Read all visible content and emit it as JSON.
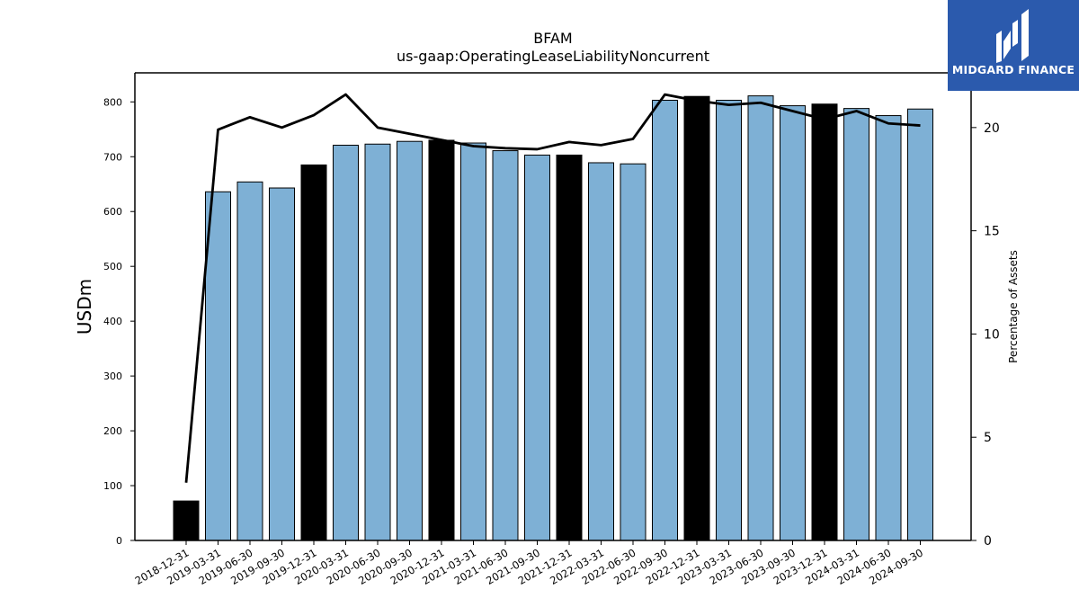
{
  "logo": {
    "text": "MIDGARD FINANCE"
  },
  "chart_data": {
    "type": "bar",
    "title": "BFAM",
    "subtitle": "us-gaap:OperatingLeaseLiabilityNoncurrent",
    "ylabel": "USDm",
    "y2label": "Percentage of Assets",
    "ylim": [
      0,
      853
    ],
    "y2lim": [
      0,
      22.65
    ],
    "yticks": [
      0,
      100,
      200,
      300,
      400,
      500,
      600,
      700,
      800
    ],
    "y2ticks": [
      0,
      5,
      10,
      15,
      20
    ],
    "categories": [
      "2018-12-31",
      "2019-03-31",
      "2019-06-30",
      "2019-09-30",
      "2019-12-31",
      "2020-03-31",
      "2020-06-30",
      "2020-09-30",
      "2020-12-31",
      "2021-03-31",
      "2021-06-30",
      "2021-09-30",
      "2021-12-31",
      "2022-03-31",
      "2022-06-30",
      "2022-09-30",
      "2022-12-31",
      "2023-03-31",
      "2023-06-30",
      "2023-09-30",
      "2023-12-31",
      "2024-03-31",
      "2024-06-30",
      "2024-09-30"
    ],
    "series": [
      {
        "values": [
          72,
          636,
          654,
          643,
          685,
          721,
          723,
          728,
          730,
          725,
          711,
          703,
          703,
          689,
          687,
          803,
          810,
          803,
          811,
          793,
          796,
          788,
          775,
          787
        ]
      },
      {
        "type": "line",
        "axis": "right",
        "values": [
          2.8,
          19.9,
          20.5,
          20.0,
          20.6,
          21.6,
          20.0,
          19.7,
          19.4,
          19.1,
          19.0,
          18.95,
          19.3,
          19.15,
          19.45,
          21.6,
          21.3,
          21.1,
          21.2,
          20.8,
          20.4,
          20.8,
          20.2,
          20.1
        ]
      }
    ],
    "colors": {
      "quarter_bar": "#7eb0d5",
      "year_end_bar": "#000000",
      "line": "#000000",
      "bar_edge": "#000000"
    },
    "year_end_categories": [
      "2018-12-31",
      "2019-12-31",
      "2020-12-31",
      "2021-12-31",
      "2022-12-31",
      "2023-12-31"
    ]
  }
}
